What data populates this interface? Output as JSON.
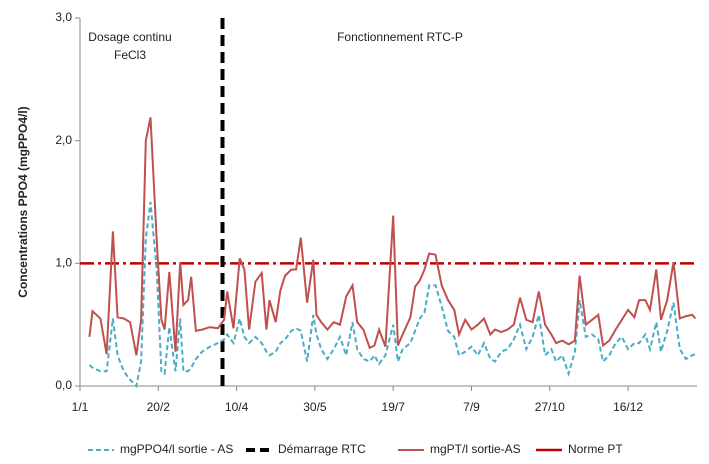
{
  "chart_data": {
    "type": "line",
    "y_label": "Concentrations PPO4 (mgPPO4/l)",
    "annotations": [
      "Dosage continu",
      "FeCl3",
      "Fonctionnement RTC-P"
    ],
    "x": [
      6,
      8,
      13,
      17,
      21,
      24,
      28,
      32,
      36,
      39,
      42,
      45,
      49,
      52,
      54,
      57,
      61,
      64,
      66,
      69,
      71,
      74,
      78,
      83,
      88,
      92,
      94,
      98,
      102,
      105,
      108,
      112,
      116,
      119,
      121,
      125,
      128,
      131,
      135,
      138,
      141,
      145,
      149,
      151,
      154,
      158,
      162,
      166,
      170,
      174,
      177,
      181,
      185,
      188,
      191,
      195,
      200,
      203,
      206,
      211,
      214,
      217,
      220,
      223,
      227,
      231,
      235,
      239,
      242,
      246,
      250,
      254,
      258,
      262,
      265,
      269,
      273,
      277,
      281,
      285,
      289,
      293,
      297,
      301,
      304,
      308,
      312,
      316,
      319,
      323,
      327,
      331,
      334,
      338,
      342,
      346,
      350,
      354,
      357,
      361,
      364,
      368,
      371,
      375,
      379,
      383,
      387,
      391,
      393
    ],
    "series": [
      {
        "name": "mgPPO4/l sortie - AS",
        "color": "#4bacc6",
        "dash": true,
        "values": [
          0.17,
          0.15,
          0.12,
          0.12,
          0.55,
          0.25,
          0.12,
          0.05,
          0,
          0.2,
          1.2,
          1.5,
          0.95,
          0.12,
          0.1,
          0.48,
          0.12,
          0.55,
          0.12,
          0.12,
          0.15,
          0.22,
          0.28,
          0.32,
          0.35,
          0.38,
          0.42,
          0.35,
          0.55,
          0.4,
          0.35,
          0.4,
          0.35,
          0.28,
          0.25,
          0.28,
          0.35,
          0.38,
          0.45,
          0.47,
          0.45,
          0.2,
          0.58,
          0.42,
          0.3,
          0.22,
          0.3,
          0.4,
          0.25,
          0.52,
          0.3,
          0.22,
          0.2,
          0.25,
          0.18,
          0.25,
          0.5,
          0.2,
          0.3,
          0.35,
          0.45,
          0.55,
          0.6,
          0.82,
          0.82,
          0.65,
          0.45,
          0.4,
          0.25,
          0.28,
          0.32,
          0.25,
          0.35,
          0.22,
          0.2,
          0.28,
          0.3,
          0.38,
          0.5,
          0.3,
          0.4,
          0.58,
          0.25,
          0.3,
          0.2,
          0.25,
          0.1,
          0.28,
          0.7,
          0.4,
          0.42,
          0.38,
          0.2,
          0.25,
          0.35,
          0.4,
          0.3,
          0.35,
          0.35,
          0.42,
          0.3,
          0.52,
          0.28,
          0.45,
          0.68,
          0.3,
          0.22,
          0.25,
          0.26
        ]
      },
      {
        "name": "mgPT/l sortie-AS",
        "color": "#c0504d",
        "dash": false,
        "values": [
          0.4,
          0.61,
          0.55,
          0.26,
          1.26,
          0.56,
          0.55,
          0.52,
          0.25,
          0.54,
          2.0,
          2.19,
          1.19,
          0.54,
          0.46,
          0.93,
          0.28,
          1.01,
          0.66,
          0.7,
          0.89,
          0.45,
          0.46,
          0.48,
          0.47,
          0.54,
          0.77,
          0.47,
          1.04,
          0.95,
          0.46,
          0.85,
          0.92,
          0.46,
          0.7,
          0.52,
          0.78,
          0.9,
          0.95,
          0.95,
          1.21,
          0.68,
          1.03,
          0.58,
          0.52,
          0.46,
          0.52,
          0.5,
          0.73,
          0.82,
          0.52,
          0.46,
          0.31,
          0.33,
          0.46,
          0.32,
          1.39,
          0.33,
          0.42,
          0.56,
          0.81,
          0.86,
          0.95,
          1.08,
          1.07,
          0.82,
          0.7,
          0.62,
          0.42,
          0.54,
          0.46,
          0.5,
          0.55,
          0.42,
          0.46,
          0.44,
          0.46,
          0.5,
          0.72,
          0.54,
          0.52,
          0.77,
          0.5,
          0.42,
          0.35,
          0.37,
          0.34,
          0.37,
          0.9,
          0.5,
          0.54,
          0.58,
          0.33,
          0.37,
          0.46,
          0.54,
          0.62,
          0.56,
          0.7,
          0.7,
          0.62,
          0.95,
          0.54,
          0.7,
          1.01,
          0.55,
          0.57,
          0.58,
          0.55
        ]
      }
    ],
    "vline": {
      "name": "Démarrage RTC",
      "x": 91,
      "color": "#000000"
    },
    "hline": {
      "name": "Norme PT",
      "value": 1.0,
      "color": "#c00000"
    },
    "xlim": [
      0,
      394
    ],
    "xticks": [
      {
        "value": 0,
        "label": "1/1"
      },
      {
        "value": 50,
        "label": "20/2"
      },
      {
        "value": 100,
        "label": "10/4"
      },
      {
        "value": 150,
        "label": "30/5"
      },
      {
        "value": 200,
        "label": "19/7"
      },
      {
        "value": 250,
        "label": "7/9"
      },
      {
        "value": 300,
        "label": "27/10"
      },
      {
        "value": 350,
        "label": "16/12"
      }
    ],
    "ylim": [
      0,
      3
    ],
    "yticks": [
      {
        "value": 0,
        "label": "0,0"
      },
      {
        "value": 1,
        "label": "1,0"
      },
      {
        "value": 2,
        "label": "2,0"
      },
      {
        "value": 3,
        "label": "3,0"
      }
    ]
  }
}
